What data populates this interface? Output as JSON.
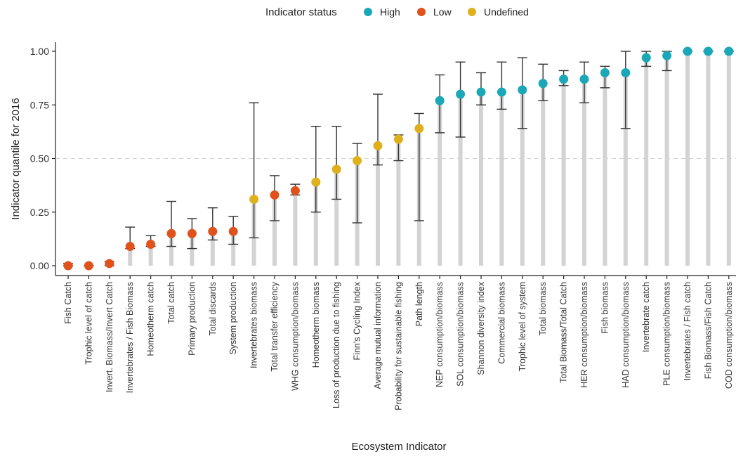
{
  "legend": {
    "title": "Indicator status",
    "items": [
      {
        "label": "High",
        "color": "#1aa8b8"
      },
      {
        "label": "Low",
        "color": "#e0521c"
      },
      {
        "label": "Undefined",
        "color": "#e0b01c"
      }
    ]
  },
  "chart_data": {
    "type": "scatter",
    "title": "",
    "xlabel": "Ecosystem Indicator",
    "ylabel": "Indicator quantile for 2016",
    "ylim": [
      0,
      1
    ],
    "yticks": [
      "0.00",
      "0.25",
      "0.50",
      "0.75",
      "1.00"
    ],
    "ytick_values": [
      0,
      0.25,
      0.5,
      0.75,
      1.0
    ],
    "reference_line": 0.5,
    "grid": false,
    "legend_position": "top",
    "colors": {
      "High": "#1aa8b8",
      "Low": "#e0521c",
      "Undefined": "#e0b01c"
    },
    "points": [
      {
        "label": "Fish Catch",
        "value": 0.0,
        "lo": 0.0,
        "hi": 0.01,
        "status": "Low"
      },
      {
        "label": "Trophic level of catch",
        "value": 0.0,
        "lo": 0.0,
        "hi": 0.0,
        "status": "Low"
      },
      {
        "label": "Invert. Biomass/Invert Catch",
        "value": 0.01,
        "lo": 0.0,
        "hi": 0.02,
        "status": "Low"
      },
      {
        "label": "Invertebrates / Fish Biomass",
        "value": 0.09,
        "lo": 0.08,
        "hi": 0.18,
        "status": "Low"
      },
      {
        "label": "Homeotherm catch",
        "value": 0.1,
        "lo": 0.09,
        "hi": 0.14,
        "status": "Low"
      },
      {
        "label": "Total catch",
        "value": 0.15,
        "lo": 0.09,
        "hi": 0.3,
        "status": "Low"
      },
      {
        "label": "Primary production",
        "value": 0.15,
        "lo": 0.08,
        "hi": 0.22,
        "status": "Low"
      },
      {
        "label": "Total discards",
        "value": 0.16,
        "lo": 0.12,
        "hi": 0.27,
        "status": "Low"
      },
      {
        "label": "System production",
        "value": 0.16,
        "lo": 0.1,
        "hi": 0.23,
        "status": "Low"
      },
      {
        "label": "Invertebrates biomass",
        "value": 0.31,
        "lo": 0.13,
        "hi": 0.76,
        "status": "Undefined"
      },
      {
        "label": "Total transfer efficiency",
        "value": 0.33,
        "lo": 0.21,
        "hi": 0.42,
        "status": "Low"
      },
      {
        "label": "WHG consumption/biomass",
        "value": 0.35,
        "lo": 0.33,
        "hi": 0.38,
        "status": "Low"
      },
      {
        "label": "Homeotherm biomass",
        "value": 0.39,
        "lo": 0.25,
        "hi": 0.65,
        "status": "Undefined"
      },
      {
        "label": "Loss of production due to fishing",
        "value": 0.45,
        "lo": 0.31,
        "hi": 0.65,
        "status": "Undefined"
      },
      {
        "label": "Finn's Cycling Index",
        "value": 0.49,
        "lo": 0.2,
        "hi": 0.57,
        "status": "Undefined"
      },
      {
        "label": "Average mutual information",
        "value": 0.56,
        "lo": 0.47,
        "hi": 0.8,
        "status": "Undefined"
      },
      {
        "label": "Probability for sustainable fishing",
        "value": 0.59,
        "lo": 0.49,
        "hi": 0.61,
        "status": "Undefined"
      },
      {
        "label": "Path length",
        "value": 0.64,
        "lo": 0.21,
        "hi": 0.71,
        "status": "Undefined"
      },
      {
        "label": "NEP consumption/biomass",
        "value": 0.77,
        "lo": 0.62,
        "hi": 0.89,
        "status": "High"
      },
      {
        "label": "SOL consumption/biomass",
        "value": 0.8,
        "lo": 0.6,
        "hi": 0.95,
        "status": "High"
      },
      {
        "label": "Shannon diversity index",
        "value": 0.81,
        "lo": 0.75,
        "hi": 0.9,
        "status": "High"
      },
      {
        "label": "Commercial biomass",
        "value": 0.81,
        "lo": 0.73,
        "hi": 0.95,
        "status": "High"
      },
      {
        "label": "Trophic level of system",
        "value": 0.82,
        "lo": 0.64,
        "hi": 0.97,
        "status": "High"
      },
      {
        "label": "Total biomass",
        "value": 0.85,
        "lo": 0.77,
        "hi": 0.94,
        "status": "High"
      },
      {
        "label": "Total Biomass/Total Catch",
        "value": 0.87,
        "lo": 0.84,
        "hi": 0.91,
        "status": "High"
      },
      {
        "label": "HER consumption/biomass",
        "value": 0.87,
        "lo": 0.76,
        "hi": 0.95,
        "status": "High"
      },
      {
        "label": "Fish biomass",
        "value": 0.9,
        "lo": 0.83,
        "hi": 0.93,
        "status": "High"
      },
      {
        "label": "HAD consumption/biomass",
        "value": 0.9,
        "lo": 0.64,
        "hi": 1.0,
        "status": "High"
      },
      {
        "label": "Invertebrate catch",
        "value": 0.97,
        "lo": 0.93,
        "hi": 1.0,
        "status": "High"
      },
      {
        "label": "PLE consumption/biomass",
        "value": 0.98,
        "lo": 0.91,
        "hi": 1.0,
        "status": "High"
      },
      {
        "label": "Invertebrates / Fish catch",
        "value": 1.0,
        "lo": 1.0,
        "hi": 1.0,
        "status": "High"
      },
      {
        "label": "Fish Biomass/Fish Catch",
        "value": 1.0,
        "lo": 1.0,
        "hi": 1.0,
        "status": "High"
      },
      {
        "label": "COD consumption/biomass",
        "value": 1.0,
        "lo": 1.0,
        "hi": 1.0,
        "status": "High"
      }
    ]
  }
}
